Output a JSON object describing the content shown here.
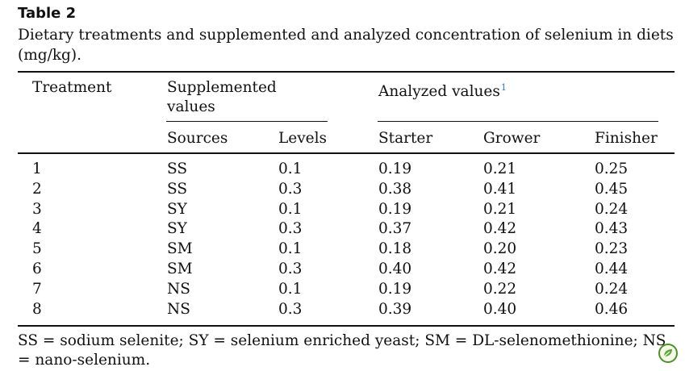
{
  "table_label": "Table 2",
  "caption": "Dietary treatments and supplemented and analyzed concentration of selenium in diets (mg/kg).",
  "headers": {
    "treatment": "Treatment",
    "supplemented_values": "Supplemented values",
    "analyzed_values": "Analyzed values",
    "analyzed_footnote_mark": "1",
    "sources": "Sources",
    "levels": "Levels",
    "starter": "Starter",
    "grower": "Grower",
    "finisher": "Finisher"
  },
  "rows": [
    {
      "treatment": "1",
      "source": "SS",
      "level": "0.1",
      "starter": "0.19",
      "grower": "0.21",
      "finisher": "0.25"
    },
    {
      "treatment": "2",
      "source": "SS",
      "level": "0.3",
      "starter": "0.38",
      "grower": "0.41",
      "finisher": "0.45"
    },
    {
      "treatment": "3",
      "source": "SY",
      "level": "0.1",
      "starter": "0.19",
      "grower": "0.21",
      "finisher": "0.24"
    },
    {
      "treatment": "4",
      "source": "SY",
      "level": "0.3",
      "starter": "0.37",
      "grower": "0.42",
      "finisher": "0.43"
    },
    {
      "treatment": "5",
      "source": "SM",
      "level": "0.1",
      "starter": "0.18",
      "grower": "0.20",
      "finisher": "0.23"
    },
    {
      "treatment": "6",
      "source": "SM",
      "level": "0.3",
      "starter": "0.40",
      "grower": "0.42",
      "finisher": "0.44"
    },
    {
      "treatment": "7",
      "source": "NS",
      "level": "0.1",
      "starter": "0.19",
      "grower": "0.22",
      "finisher": "0.24"
    },
    {
      "treatment": "8",
      "source": "NS",
      "level": "0.3",
      "starter": "0.39",
      "grower": "0.40",
      "finisher": "0.46"
    }
  ],
  "footnote": "SS = sodium selenite; SY = selenium enriched yeast; SM = DL-selenomethionine; NS = nano-selenium.",
  "corner_icon": "leaf-badge-icon"
}
